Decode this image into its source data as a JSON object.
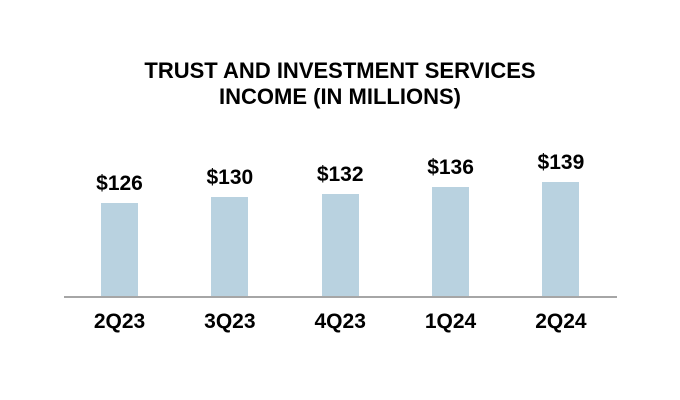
{
  "chart": {
    "title_line1": "TRUST AND INVESTMENT SERVICES",
    "title_line2": "INCOME (IN MILLIONS)"
  },
  "chart_data": {
    "type": "bar",
    "title": "TRUST AND INVESTMENT SERVICES INCOME (IN MILLIONS)",
    "categories": [
      "2Q23",
      "3Q23",
      "4Q23",
      "1Q24",
      "2Q24"
    ],
    "values": [
      126,
      130,
      132,
      136,
      139
    ],
    "value_labels": [
      "$126",
      "$130",
      "$132",
      "$136",
      "$139"
    ],
    "xlabel": "",
    "ylabel": "",
    "ylim": [
      68,
      160
    ],
    "grid": false,
    "legend": "none",
    "bar_color": "#b9d2e0",
    "axis_line_color": "#a6a6a6",
    "text_color": "#000000",
    "background": "#ffffff"
  }
}
